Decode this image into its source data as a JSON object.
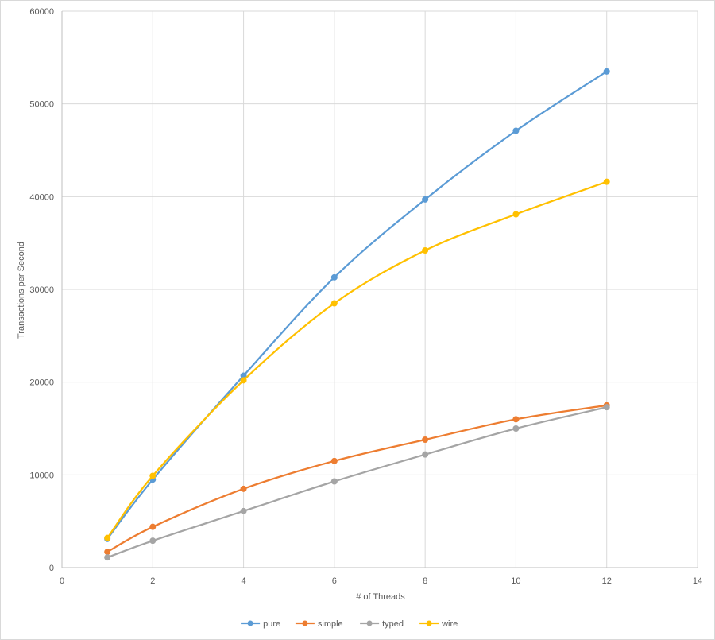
{
  "chart_data": {
    "type": "line",
    "xlabel": "# of Threads",
    "ylabel": "Transactions per Second",
    "xlim": [
      0,
      14
    ],
    "ylim": [
      0,
      60000
    ],
    "x_ticks": [
      0,
      2,
      4,
      6,
      8,
      10,
      12,
      14
    ],
    "y_ticks": [
      0,
      10000,
      20000,
      30000,
      40000,
      50000,
      60000
    ],
    "grid": "vertical and horizontal",
    "legend_position": "bottom",
    "smooth": true,
    "series": [
      {
        "name": "pure",
        "color": "#5b9bd5",
        "x": [
          1,
          2,
          4,
          6,
          8,
          10,
          12
        ],
        "y": [
          3100,
          9500,
          20700,
          31300,
          39700,
          47100,
          53500
        ]
      },
      {
        "name": "simple",
        "color": "#ed7d31",
        "x": [
          1,
          2,
          4,
          6,
          8,
          10,
          12
        ],
        "y": [
          1700,
          4400,
          8500,
          11500,
          13800,
          16000,
          17500
        ]
      },
      {
        "name": "typed",
        "color": "#a5a5a5",
        "x": [
          1,
          2,
          4,
          6,
          8,
          10,
          12
        ],
        "y": [
          1100,
          2900,
          6100,
          9300,
          12200,
          15000,
          17300
        ]
      },
      {
        "name": "wire",
        "color": "#ffc000",
        "x": [
          1,
          2,
          4,
          6,
          8,
          10,
          12
        ],
        "y": [
          3200,
          9900,
          20200,
          28500,
          34200,
          38100,
          41600
        ]
      }
    ]
  }
}
